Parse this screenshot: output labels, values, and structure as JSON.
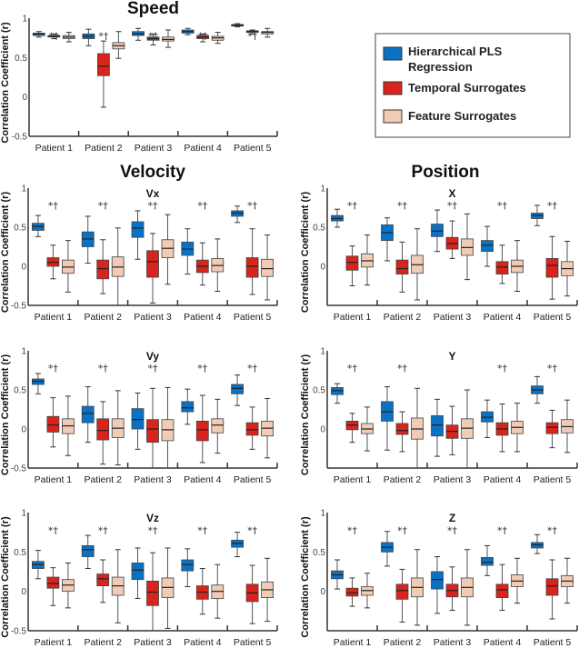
{
  "colors": {
    "hierarchical": "#0a72c4",
    "temporal": "#d8241c",
    "feature": "#f0cbb5"
  },
  "legend": [
    {
      "label_line1": "Hierarchical PLS",
      "label_line2": "Regression",
      "color": "#0a72c4"
    },
    {
      "label_line1": "Temporal Surrogates",
      "label_line2": "",
      "color": "#d8241c"
    },
    {
      "label_line1": "Feature Surrogates",
      "label_line2": "",
      "color": "#f0cbb5"
    }
  ],
  "group_titles": {
    "velocity": "Velocity",
    "position": "Position"
  },
  "chart_data": [
    {
      "id": "speed",
      "type": "box",
      "title": "Speed",
      "subtitle": "",
      "ylabel": "Correlation Coefficient (r)",
      "ylim": [
        -0.5,
        1
      ],
      "yticks": [
        "1",
        "0.5",
        "0",
        "-0.5"
      ],
      "categories": [
        "Patient 1",
        "Patient 2",
        "Patient 3",
        "Patient 4",
        "Patient 5"
      ],
      "annotations": [
        "*†",
        "*†",
        "*†",
        "*†",
        "*†"
      ],
      "series": [
        {
          "name": "Hierarchical PLS Regression",
          "boxes": [
            [
              0.76,
              0.78,
              0.8,
              0.81,
              0.83
            ],
            [
              0.65,
              0.74,
              0.77,
              0.8,
              0.86
            ],
            [
              0.72,
              0.78,
              0.8,
              0.83,
              0.87
            ],
            [
              0.79,
              0.81,
              0.83,
              0.85,
              0.87
            ],
            [
              0.89,
              0.9,
              0.91,
              0.92,
              0.93
            ]
          ]
        },
        {
          "name": "Temporal Surrogates",
          "boxes": [
            [
              0.74,
              0.76,
              0.77,
              0.78,
              0.8
            ],
            [
              -0.13,
              0.27,
              0.39,
              0.55,
              0.71
            ],
            [
              0.66,
              0.72,
              0.74,
              0.76,
              0.8
            ],
            [
              0.7,
              0.74,
              0.76,
              0.78,
              0.8
            ],
            [
              0.8,
              0.82,
              0.83,
              0.84,
              0.85
            ]
          ]
        },
        {
          "name": "Feature Surrogates",
          "boxes": [
            [
              0.7,
              0.74,
              0.76,
              0.78,
              0.82
            ],
            [
              0.49,
              0.61,
              0.65,
              0.69,
              0.83
            ],
            [
              0.63,
              0.71,
              0.73,
              0.76,
              0.85
            ],
            [
              0.68,
              0.72,
              0.75,
              0.77,
              0.82
            ],
            [
              0.76,
              0.8,
              0.82,
              0.83,
              0.87
            ]
          ]
        }
      ]
    },
    {
      "id": "vx",
      "type": "box",
      "title": "",
      "subtitle": "Vx",
      "ylabel": "Correlation Coefficient (r)",
      "ylim": [
        -0.5,
        1
      ],
      "yticks": [
        "1",
        "0.5",
        "0",
        "-0.5"
      ],
      "categories": [
        "Patient 1",
        "Patient 2",
        "Patient 3",
        "Patient 4",
        "Patient 5"
      ],
      "annotations": [
        "*†",
        "*†",
        "*†",
        "*†",
        "*†"
      ],
      "series": [
        {
          "name": "Hierarchical PLS Regression",
          "boxes": [
            [
              0.38,
              0.46,
              0.51,
              0.55,
              0.65
            ],
            [
              0.04,
              0.25,
              0.35,
              0.44,
              0.64
            ],
            [
              0.09,
              0.37,
              0.49,
              0.57,
              0.71
            ],
            [
              -0.1,
              0.14,
              0.22,
              0.31,
              0.48
            ],
            [
              0.56,
              0.64,
              0.68,
              0.71,
              0.77
            ]
          ]
        },
        {
          "name": "Temporal Surrogates",
          "boxes": [
            [
              -0.16,
              0.0,
              0.05,
              0.11,
              0.27
            ],
            [
              -0.35,
              -0.16,
              -0.03,
              0.08,
              0.34
            ],
            [
              -0.47,
              -0.14,
              0.06,
              0.2,
              0.42
            ],
            [
              -0.24,
              -0.08,
              0.0,
              0.08,
              0.3
            ],
            [
              -0.36,
              -0.14,
              0.0,
              0.11,
              0.48
            ]
          ]
        },
        {
          "name": "Feature Surrogates",
          "boxes": [
            [
              -0.33,
              -0.09,
              -0.01,
              0.08,
              0.33
            ],
            [
              -0.5,
              -0.13,
              -0.01,
              0.12,
              0.49
            ],
            [
              -0.23,
              0.11,
              0.23,
              0.34,
              0.66
            ],
            [
              -0.32,
              -0.07,
              0.01,
              0.1,
              0.35
            ],
            [
              -0.43,
              -0.13,
              -0.03,
              0.09,
              0.4
            ]
          ]
        }
      ]
    },
    {
      "id": "x",
      "type": "box",
      "title": "",
      "subtitle": "X",
      "ylabel": "Correlation Coefficient (r)",
      "ylim": [
        -0.5,
        1
      ],
      "yticks": [
        "1",
        "0.5",
        "0",
        ""
      ],
      "categories": [
        "Patient 1",
        "Patient 2",
        "Patient 3",
        "Patient 4",
        "Patient 5"
      ],
      "annotations": [
        "*†",
        "*†",
        "*†",
        "*†",
        "*†"
      ],
      "series": [
        {
          "name": "Hierarchical PLS Regression",
          "boxes": [
            [
              0.5,
              0.58,
              0.61,
              0.65,
              0.73
            ],
            [
              0.07,
              0.33,
              0.43,
              0.53,
              0.62
            ],
            [
              0.19,
              0.38,
              0.45,
              0.54,
              0.72
            ],
            [
              0.0,
              0.19,
              0.27,
              0.33,
              0.51
            ],
            [
              0.52,
              0.61,
              0.65,
              0.68,
              0.78
            ]
          ]
        },
        {
          "name": "Temporal Surrogates",
          "boxes": [
            [
              -0.25,
              -0.05,
              0.05,
              0.13,
              0.26
            ],
            [
              -0.33,
              -0.1,
              -0.03,
              0.08,
              0.31
            ],
            [
              0.1,
              0.22,
              0.29,
              0.37,
              0.58
            ],
            [
              -0.22,
              -0.1,
              -0.01,
              0.06,
              0.27
            ],
            [
              -0.42,
              -0.14,
              0.01,
              0.1,
              0.38
            ]
          ]
        },
        {
          "name": "Feature Surrogates",
          "boxes": [
            [
              -0.24,
              -0.01,
              0.07,
              0.16,
              0.4
            ],
            [
              -0.43,
              -0.09,
              0.02,
              0.14,
              0.48
            ],
            [
              -0.17,
              0.14,
              0.24,
              0.35,
              0.67
            ],
            [
              -0.32,
              -0.08,
              0.0,
              0.08,
              0.33
            ],
            [
              -0.38,
              -0.12,
              -0.03,
              0.06,
              0.32
            ]
          ]
        }
      ]
    },
    {
      "id": "vy",
      "type": "box",
      "title": "",
      "subtitle": "Vy",
      "ylabel": "Correlation Coefficient (r)",
      "ylim": [
        -0.5,
        1
      ],
      "yticks": [
        "1",
        "0.5",
        "0",
        "-0.5"
      ],
      "categories": [
        "Patient 1",
        "Patient 2",
        "Patient 3",
        "Patient 4",
        "Patient 5"
      ],
      "annotations": [
        "*†",
        "*†",
        "*†",
        "*†",
        "*†"
      ],
      "series": [
        {
          "name": "Hierarchical PLS Regression",
          "boxes": [
            [
              0.45,
              0.57,
              0.61,
              0.64,
              0.71
            ],
            [
              -0.17,
              0.08,
              0.2,
              0.29,
              0.54
            ],
            [
              -0.26,
              0.0,
              0.12,
              0.26,
              0.46
            ],
            [
              0.06,
              0.22,
              0.27,
              0.35,
              0.51
            ],
            [
              0.3,
              0.45,
              0.52,
              0.57,
              0.69
            ]
          ]
        },
        {
          "name": "Temporal Surrogates",
          "boxes": [
            [
              -0.23,
              -0.04,
              0.05,
              0.16,
              0.4
            ],
            [
              -0.45,
              -0.14,
              -0.02,
              0.13,
              0.35
            ],
            [
              -0.5,
              -0.17,
              0.0,
              0.12,
              0.52
            ],
            [
              -0.43,
              -0.15,
              -0.01,
              0.1,
              0.43
            ],
            [
              -0.26,
              -0.08,
              -0.01,
              0.08,
              0.28
            ]
          ]
        },
        {
          "name": "Feature Surrogates",
          "boxes": [
            [
              -0.34,
              -0.06,
              0.04,
              0.13,
              0.42
            ],
            [
              -0.46,
              -0.11,
              0.01,
              0.13,
              0.49
            ],
            [
              -0.5,
              -0.15,
              -0.01,
              0.12,
              0.53
            ],
            [
              -0.31,
              -0.05,
              0.05,
              0.13,
              0.38
            ],
            [
              -0.37,
              -0.09,
              0.01,
              0.1,
              0.39
            ]
          ]
        }
      ]
    },
    {
      "id": "y",
      "type": "box",
      "title": "",
      "subtitle": "Y",
      "ylabel": "Correlation Coefficient (r)",
      "ylim": [
        -0.5,
        1
      ],
      "yticks": [
        "1",
        "0.5",
        "0",
        ""
      ],
      "categories": [
        "Patient 1",
        "Patient 2",
        "Patient 3",
        "Patient 4",
        "Patient 5"
      ],
      "annotations": [
        "*†",
        "*†",
        "",
        "*†",
        "*†"
      ],
      "series": [
        {
          "name": "Hierarchical PLS Regression",
          "boxes": [
            [
              0.33,
              0.44,
              0.49,
              0.53,
              0.58
            ],
            [
              -0.27,
              0.1,
              0.22,
              0.35,
              0.54
            ],
            [
              -0.35,
              -0.09,
              0.05,
              0.17,
              0.38
            ],
            [
              -0.11,
              0.09,
              0.15,
              0.22,
              0.37
            ],
            [
              0.33,
              0.45,
              0.5,
              0.55,
              0.67
            ]
          ]
        },
        {
          "name": "Temporal Surrogates",
          "boxes": [
            [
              -0.17,
              -0.01,
              0.05,
              0.1,
              0.2
            ],
            [
              -0.29,
              -0.07,
              -0.02,
              0.07,
              0.22
            ],
            [
              -0.33,
              -0.12,
              -0.03,
              0.05,
              0.29
            ],
            [
              -0.29,
              -0.08,
              0.0,
              0.08,
              0.32
            ],
            [
              -0.24,
              -0.06,
              0.02,
              0.08,
              0.24
            ]
          ]
        },
        {
          "name": "Feature Surrogates",
          "boxes": [
            [
              -0.28,
              -0.06,
              0.0,
              0.07,
              0.28
            ],
            [
              -0.5,
              -0.13,
              0.0,
              0.14,
              0.52
            ],
            [
              -0.5,
              -0.12,
              0.01,
              0.13,
              0.5
            ],
            [
              -0.29,
              -0.06,
              0.02,
              0.1,
              0.33
            ],
            [
              -0.3,
              -0.05,
              0.03,
              0.12,
              0.37
            ]
          ]
        }
      ]
    },
    {
      "id": "vz",
      "type": "box",
      "title": "",
      "subtitle": "Vz",
      "ylabel": "Correlation Coefficient (r)",
      "ylim": [
        -0.5,
        1
      ],
      "yticks": [
        "1",
        "0.5",
        "0",
        "-0.5"
      ],
      "categories": [
        "Patient 1",
        "Patient 2",
        "Patient 3",
        "Patient 4",
        "Patient 5"
      ],
      "annotations": [
        "*†",
        "*†",
        "*†",
        "*†",
        "*†"
      ],
      "series": [
        {
          "name": "Hierarchical PLS Regression",
          "boxes": [
            [
              0.16,
              0.29,
              0.34,
              0.38,
              0.52
            ],
            [
              0.29,
              0.44,
              0.53,
              0.58,
              0.71
            ],
            [
              -0.09,
              0.15,
              0.27,
              0.36,
              0.55
            ],
            [
              0.06,
              0.26,
              0.34,
              0.4,
              0.54
            ],
            [
              0.44,
              0.56,
              0.61,
              0.65,
              0.75
            ]
          ]
        },
        {
          "name": "Temporal Surrogates",
          "boxes": [
            [
              -0.18,
              0.04,
              0.1,
              0.18,
              0.3
            ],
            [
              -0.14,
              0.07,
              0.16,
              0.22,
              0.4
            ],
            [
              -0.5,
              -0.18,
              -0.01,
              0.13,
              0.49
            ],
            [
              -0.29,
              -0.1,
              -0.01,
              0.07,
              0.29
            ],
            [
              -0.41,
              -0.13,
              -0.02,
              0.09,
              0.33
            ]
          ]
        },
        {
          "name": "Feature Surrogates",
          "boxes": [
            [
              -0.21,
              0.0,
              0.08,
              0.15,
              0.36
            ],
            [
              -0.4,
              -0.05,
              0.07,
              0.18,
              0.53
            ],
            [
              -0.47,
              -0.08,
              0.05,
              0.17,
              0.55
            ],
            [
              -0.34,
              -0.09,
              0.0,
              0.08,
              0.34
            ],
            [
              -0.38,
              -0.08,
              0.02,
              0.12,
              0.42
            ]
          ]
        }
      ]
    },
    {
      "id": "z",
      "type": "box",
      "title": "",
      "subtitle": "Z",
      "ylabel": "Correlation Coefficient (r)",
      "ylim": [
        -0.5,
        1
      ],
      "yticks": [
        "1",
        "0.5",
        "0",
        ""
      ],
      "categories": [
        "Patient 1",
        "Patient 2",
        "Patient 3",
        "Patient 4",
        "Patient 5"
      ],
      "annotations": [
        "*†",
        "*†",
        "*†",
        "*†",
        "*†"
      ],
      "series": [
        {
          "name": "Hierarchical PLS Regression",
          "boxes": [
            [
              0.03,
              0.16,
              0.21,
              0.26,
              0.4
            ],
            [
              0.32,
              0.5,
              0.56,
              0.62,
              0.76
            ],
            [
              -0.28,
              0.03,
              0.15,
              0.25,
              0.44
            ],
            [
              0.2,
              0.33,
              0.37,
              0.43,
              0.58
            ],
            [
              0.48,
              0.55,
              0.59,
              0.62,
              0.72
            ]
          ]
        },
        {
          "name": "Temporal Surrogates",
          "boxes": [
            [
              -0.19,
              -0.06,
              -0.02,
              0.04,
              0.17
            ],
            [
              -0.39,
              -0.1,
              0.01,
              0.09,
              0.28
            ],
            [
              -0.24,
              -0.07,
              0.01,
              0.09,
              0.31
            ],
            [
              -0.24,
              -0.08,
              0.02,
              0.09,
              0.34
            ],
            [
              -0.35,
              -0.05,
              0.07,
              0.16,
              0.4
            ]
          ]
        },
        {
          "name": "Feature Surrogates",
          "boxes": [
            [
              -0.21,
              -0.05,
              0.01,
              0.06,
              0.23
            ],
            [
              -0.43,
              -0.07,
              0.05,
              0.17,
              0.53
            ],
            [
              -0.43,
              -0.07,
              0.05,
              0.17,
              0.53
            ],
            [
              -0.15,
              0.06,
              0.13,
              0.21,
              0.42
            ],
            [
              -0.15,
              0.06,
              0.13,
              0.2,
              0.42
            ]
          ]
        }
      ]
    }
  ]
}
